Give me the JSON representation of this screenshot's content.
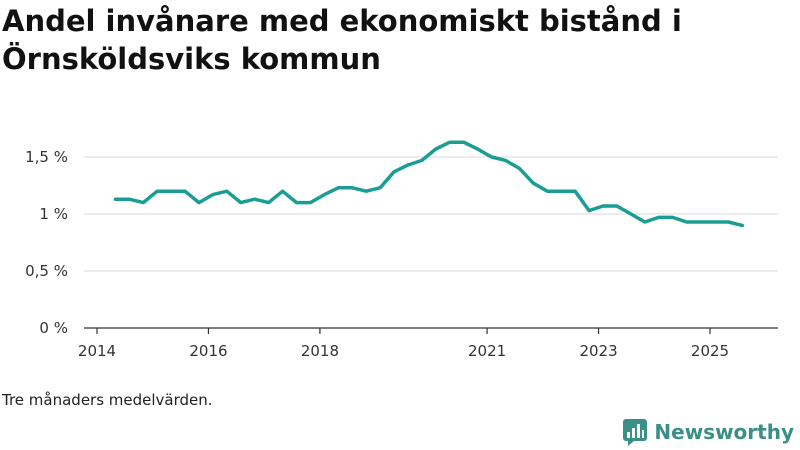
{
  "chart_data": {
    "type": "line",
    "title": "Andel invånare med ekonomiskt bistånd i Örnsköldsviks kommun",
    "ytick_labels": [
      "0 %",
      "0,5 %",
      "1 %",
      "1,5 %"
    ],
    "yticks": [
      0,
      0.5,
      1,
      1.5
    ],
    "ylim": [
      0,
      1.75
    ],
    "xlim": [
      2014,
      2025.85
    ],
    "xticks": [
      2014,
      2016,
      2018,
      2021,
      2023,
      2025
    ],
    "xtick_labels": [
      "2014",
      "2016",
      "2018",
      "2021",
      "2023",
      "2025"
    ],
    "grid": true,
    "series": [
      {
        "name": "Andel invånare med ekonomiskt bistånd",
        "color": "#1a9e93",
        "x": [
          2014.33,
          2014.58,
          2014.83,
          2015.08,
          2015.33,
          2015.58,
          2015.83,
          2016.08,
          2016.33,
          2016.58,
          2016.83,
          2017.08,
          2017.33,
          2017.58,
          2017.83,
          2018.08,
          2018.33,
          2018.58,
          2018.83,
          2019.08,
          2019.33,
          2019.58,
          2019.83,
          2020.08,
          2020.33,
          2020.58,
          2020.83,
          2021.08,
          2021.33,
          2021.58,
          2021.83,
          2022.08,
          2022.33,
          2022.58,
          2022.83,
          2023.08,
          2023.33,
          2023.58,
          2023.83,
          2024.08,
          2024.33,
          2024.58,
          2024.83,
          2025.08,
          2025.33,
          2025.58
        ],
        "values": [
          1.13,
          1.13,
          1.1,
          1.2,
          1.2,
          1.2,
          1.1,
          1.17,
          1.2,
          1.1,
          1.13,
          1.1,
          1.2,
          1.1,
          1.1,
          1.17,
          1.23,
          1.23,
          1.2,
          1.23,
          1.37,
          1.43,
          1.47,
          1.57,
          1.63,
          1.63,
          1.57,
          1.5,
          1.47,
          1.4,
          1.27,
          1.2,
          1.2,
          1.2,
          1.03,
          1.07,
          1.07,
          1.0,
          0.93,
          0.97,
          0.97,
          0.93,
          0.93,
          0.93,
          0.93,
          0.9
        ]
      }
    ]
  },
  "footer": {
    "note": "Tre månaders medelvärden.",
    "brand": "Newsworthy"
  },
  "colors": {
    "line": "#1a9e93",
    "brand": "#3a8f86"
  }
}
